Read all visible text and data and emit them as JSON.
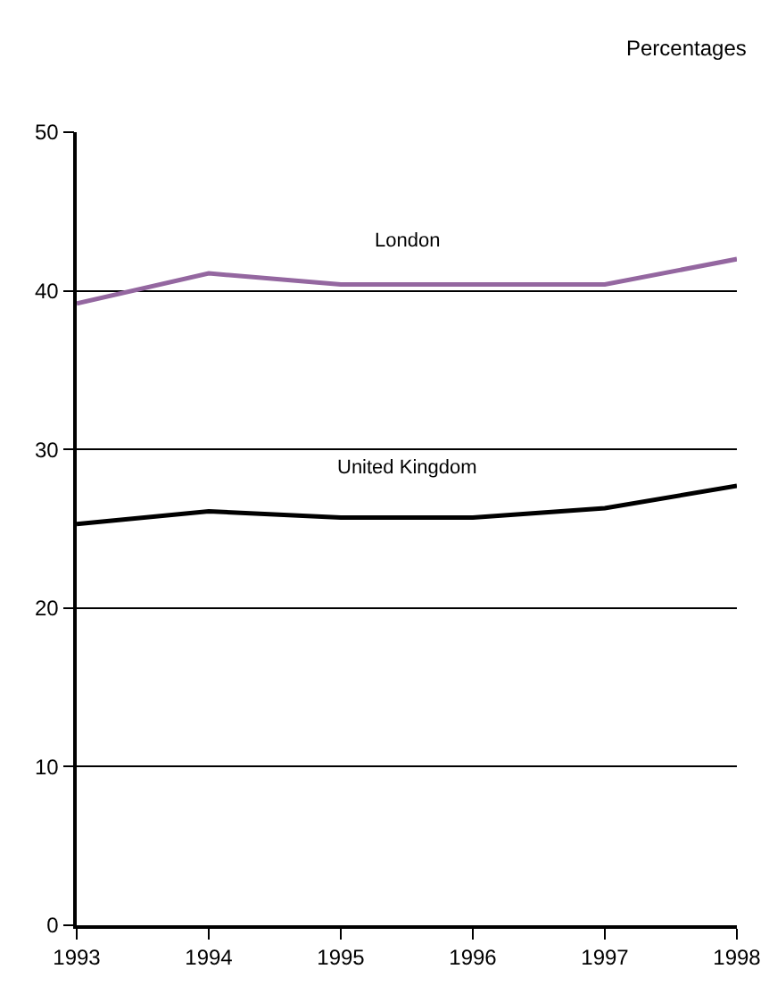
{
  "chart_data": {
    "type": "line",
    "ylabel": "Percentages",
    "x": [
      1993,
      1994,
      1995,
      1996,
      1997,
      1998
    ],
    "series": [
      {
        "name": "London",
        "color": "#9467a0",
        "values": [
          39.2,
          41.1,
          40.4,
          40.4,
          40.4,
          42.0
        ]
      },
      {
        "name": "United Kingdom",
        "color": "#000000",
        "values": [
          25.3,
          26.1,
          25.7,
          25.7,
          26.3,
          27.7
        ]
      }
    ],
    "xlim": [
      1993,
      1998
    ],
    "xticks": [
      1993,
      1994,
      1995,
      1996,
      1997,
      1998
    ],
    "ylim": [
      0,
      50
    ],
    "yticks": [
      0,
      10,
      20,
      30,
      40,
      50
    ],
    "grid": "y",
    "legend": false,
    "marker": "none",
    "line_style": "solid"
  }
}
